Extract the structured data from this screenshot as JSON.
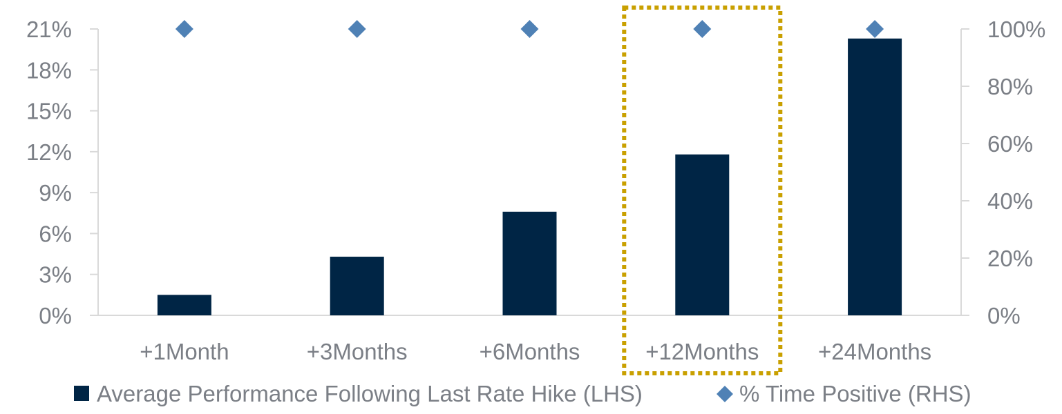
{
  "chart_data": {
    "type": "bar",
    "categories": [
      "+1Month",
      "+3Months",
      "+6Months",
      "+12Months",
      "+24Months"
    ],
    "series": [
      {
        "name": "Average Performance Following Last Rate Hike (LHS)",
        "type": "bar",
        "axis": "left",
        "color": "#002545",
        "values": [
          1.5,
          4.3,
          7.6,
          11.8,
          20.3
        ]
      },
      {
        "name": "% Time Positive (RHS)",
        "type": "scatter",
        "marker": "diamond",
        "axis": "right",
        "color": "#4f81b5",
        "values": [
          100,
          100,
          100,
          100,
          100
        ]
      }
    ],
    "y_left": {
      "range": [
        0,
        21
      ],
      "ticks": [
        0,
        3,
        6,
        9,
        12,
        15,
        18,
        21
      ],
      "tick_labels": [
        "0%",
        "3%",
        "6%",
        "9%",
        "12%",
        "15%",
        "18%",
        "21%"
      ]
    },
    "y_right": {
      "range": [
        0,
        100
      ],
      "ticks": [
        0,
        20,
        40,
        60,
        80,
        100
      ],
      "tick_labels": [
        "0%",
        "20%",
        "40%",
        "60%",
        "80%",
        "100%"
      ]
    },
    "highlight": {
      "category": "+12Months",
      "style": "dotted-box",
      "color": "#c9a000"
    },
    "grid": false,
    "legend_position": "bottom",
    "title": "",
    "xlabel": "",
    "ylabel": ""
  }
}
